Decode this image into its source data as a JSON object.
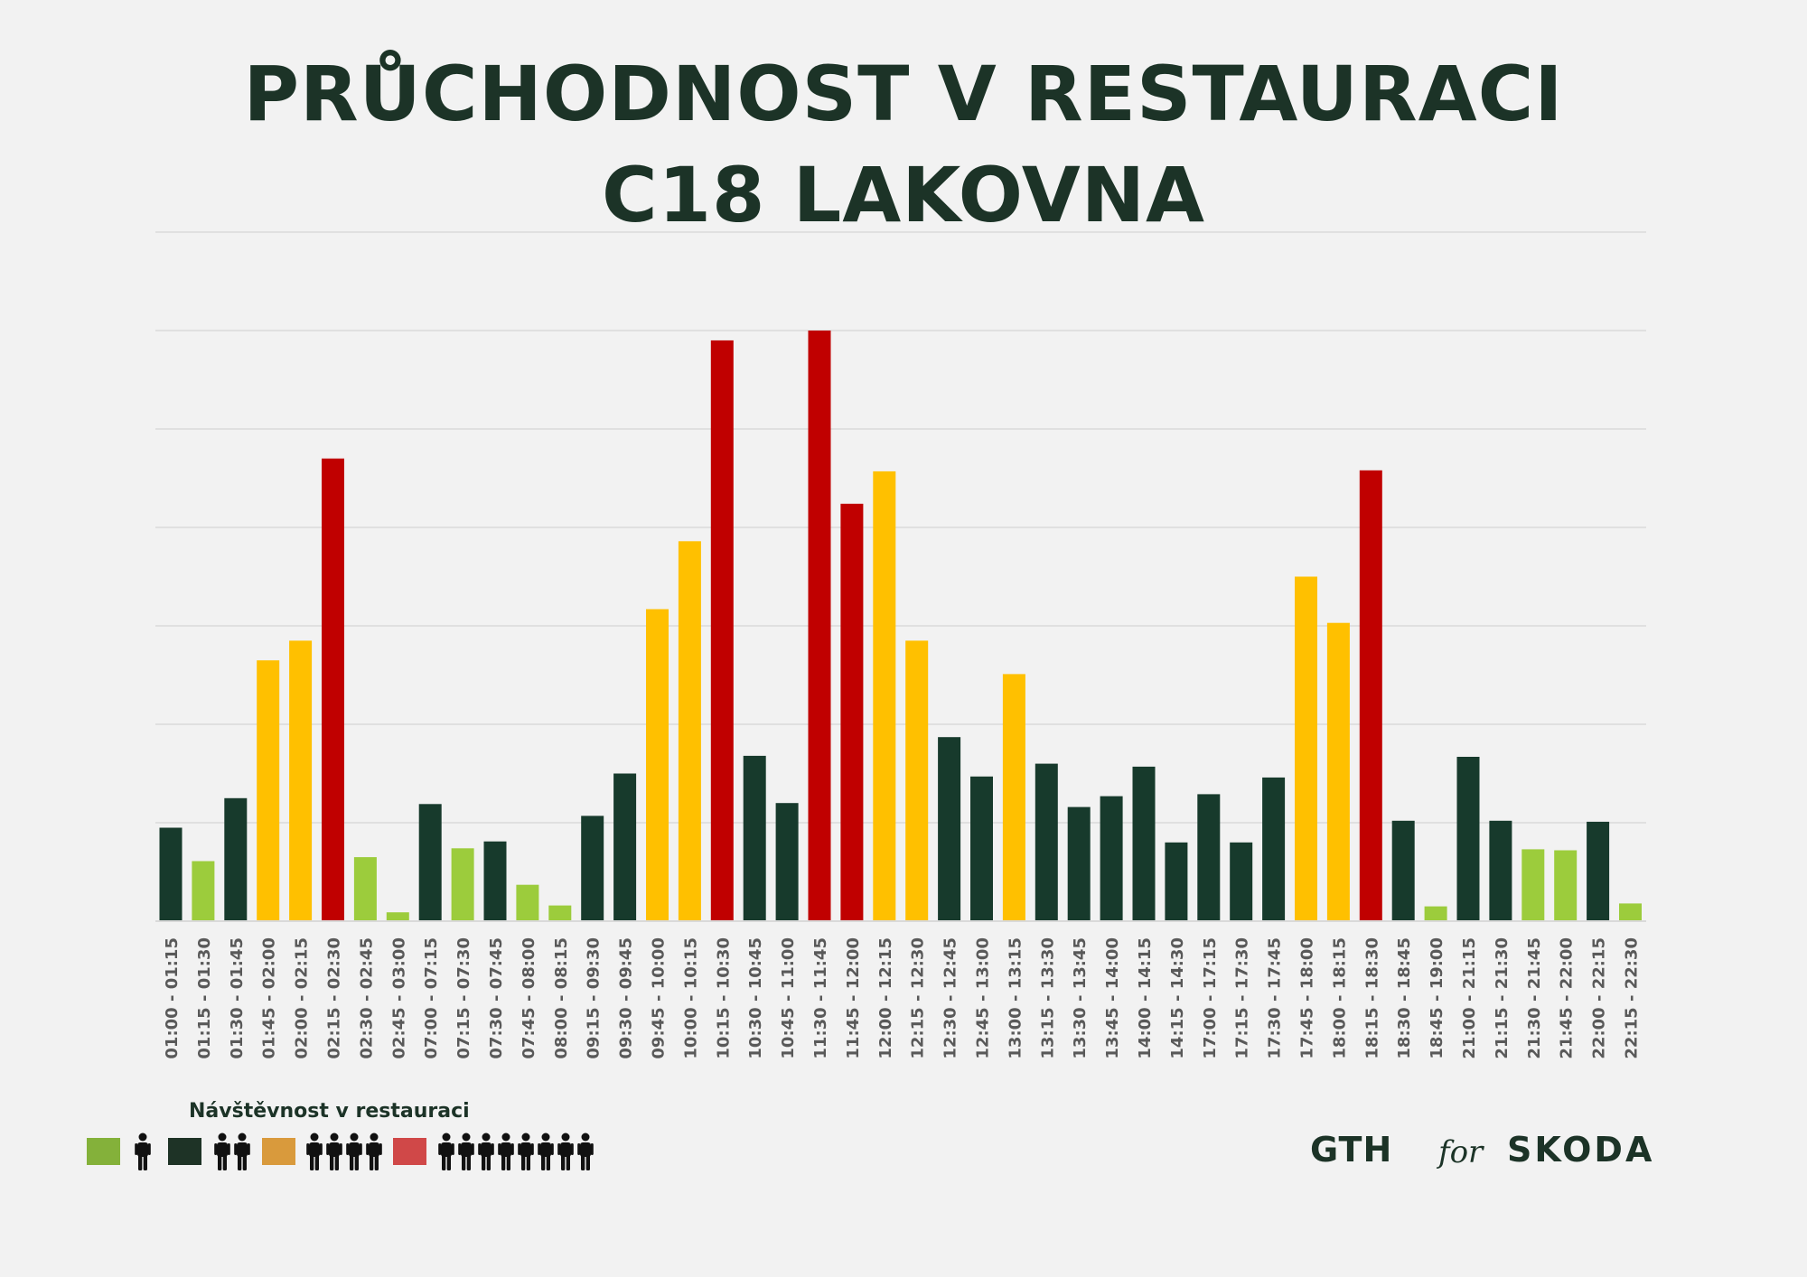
{
  "title": {
    "line1": "PRŮCHODNOST V RESTAURACI",
    "line2": "C18 LAKOVNA"
  },
  "colors": {
    "light_green": "#9ccc3c",
    "dark_green": "#173a2c",
    "yellow": "#ffc000",
    "red": "#c00000",
    "text": "#1c3327",
    "grid": "#d9d9d9",
    "legend_light_green": "#84b13a",
    "legend_dark": "#1e3326",
    "legend_orange": "#d99a3c",
    "legend_red": "#d04848"
  },
  "legend": {
    "title": "Návštěvnost v restauraci",
    "items": [
      {
        "color_key": "legend_light_green",
        "people": 1
      },
      {
        "color_key": "legend_dark",
        "people": 2
      },
      {
        "color_key": "legend_orange",
        "people": 4
      },
      {
        "color_key": "legend_red",
        "people": 8
      }
    ]
  },
  "branding": {
    "gth": "GTH",
    "for": "for",
    "skoda": "SKODA"
  },
  "chart_data": {
    "type": "bar",
    "title": "PRŮCHODNOST V RESTAURACI C18 LAKOVNA",
    "xlabel": "",
    "ylabel": "",
    "ylim": [
      0,
      7
    ],
    "grid": true,
    "categories": [
      "01:00 - 01:15",
      "01:15 - 01:30",
      "01:30 - 01:45",
      "01:45 - 02:00",
      "02:00 - 02:15",
      "02:15 - 02:30",
      "02:30 - 02:45",
      "02:45 - 03:00",
      "07:00 - 07:15",
      "07:15 - 07:30",
      "07:30 - 07:45",
      "07:45 - 08:00",
      "08:00 - 08:15",
      "09:15 - 09:30",
      "09:30 - 09:45",
      "09:45 - 10:00",
      "10:00 - 10:15",
      "10:15 - 10:30",
      "10:30 - 10:45",
      "10:45 - 11:00",
      "11:30 - 11:45",
      "11:45 - 12:00",
      "12:00 - 12:15",
      "12:15 - 12:30",
      "12:30 - 12:45",
      "12:45 - 13:00",
      "13:00 - 13:15",
      "13:15 - 13:30",
      "13:30 - 13:45",
      "13:45 - 14:00",
      "14:00 - 14:15",
      "14:15 - 14:30",
      "17:00 - 17:15",
      "17:15 - 17:30",
      "17:30 - 17:45",
      "17:45 - 18:00",
      "18:00 - 18:15",
      "18:15 - 18:30",
      "18:30 - 18:45",
      "18:45 - 19:00",
      "21:00 - 21:15",
      "21:15 - 21:30",
      "21:30 - 21:45",
      "21:45 - 22:00",
      "22:00 - 22:15",
      "22:15 - 22:30"
    ],
    "values": [
      0.95,
      0.61,
      1.25,
      2.65,
      2.85,
      4.7,
      0.65,
      0.09,
      1.19,
      0.74,
      0.81,
      0.37,
      0.16,
      1.07,
      1.5,
      3.17,
      3.86,
      5.9,
      1.68,
      1.2,
      6.0,
      4.24,
      4.57,
      2.85,
      1.87,
      1.47,
      2.51,
      1.6,
      1.16,
      1.27,
      1.57,
      0.8,
      1.29,
      0.8,
      1.46,
      3.5,
      3.03,
      4.58,
      1.02,
      0.15,
      1.67,
      1.02,
      0.73,
      0.72,
      1.01,
      0.18
    ],
    "bar_colors": [
      "dark_green",
      "light_green",
      "dark_green",
      "yellow",
      "yellow",
      "red",
      "light_green",
      "light_green",
      "dark_green",
      "light_green",
      "dark_green",
      "light_green",
      "light_green",
      "dark_green",
      "dark_green",
      "yellow",
      "yellow",
      "red",
      "dark_green",
      "dark_green",
      "red",
      "red",
      "yellow",
      "yellow",
      "dark_green",
      "dark_green",
      "yellow",
      "dark_green",
      "dark_green",
      "dark_green",
      "dark_green",
      "dark_green",
      "dark_green",
      "dark_green",
      "dark_green",
      "yellow",
      "yellow",
      "red",
      "dark_green",
      "light_green",
      "dark_green",
      "dark_green",
      "light_green",
      "light_green",
      "dark_green",
      "light_green"
    ]
  }
}
